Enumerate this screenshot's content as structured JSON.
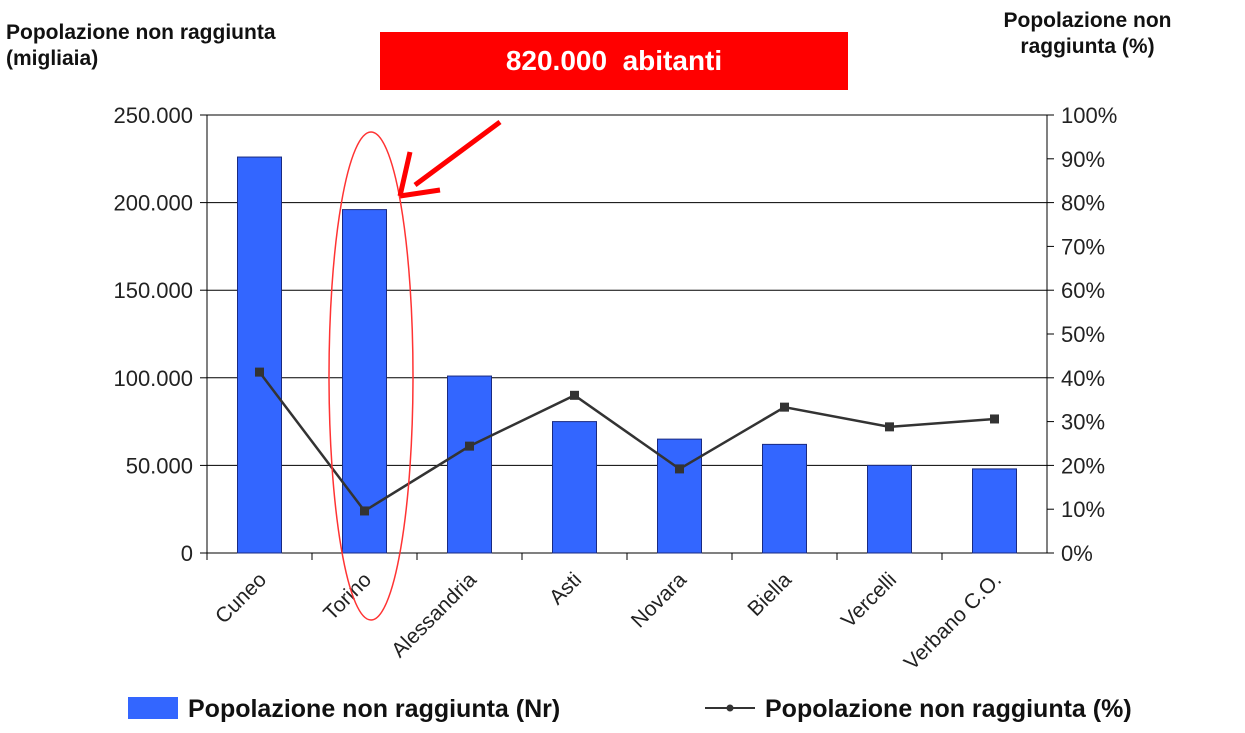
{
  "chart_data": {
    "type": "bar_line",
    "annotation": "820.000  abitanti",
    "y_label": "Popolazione non raggiunta (migliaia)",
    "y2_label": "Popolazione non raggiunta (%)",
    "categories": [
      "Cuneo",
      "Torino",
      "Alessandria",
      "Asti",
      "Novara",
      "Biella",
      "Vercelli",
      "Verbano C.O."
    ],
    "series": [
      {
        "name": "Popolazione non raggiunta (Nr)",
        "type": "bar",
        "color": "#3366ff",
        "values": [
          226000,
          196000,
          101000,
          75000,
          65000,
          62000,
          50000,
          48000
        ]
      },
      {
        "name": "Popolazione non raggiunta (%)",
        "type": "line",
        "axis": "y2",
        "color": "#333333",
        "values": [
          41.3,
          9.6,
          24.4,
          36,
          19.2,
          33.3,
          28.8,
          30.6
        ]
      }
    ],
    "ylim": [
      0,
      250000
    ],
    "yticks": [
      0,
      {
        "value": 50000,
        "label": "50.000"
      },
      {
        "value": 100000,
        "label": "100.000"
      },
      {
        "value": 150000,
        "label": "150.000"
      },
      {
        "value": 200000,
        "label": "200.000"
      },
      {
        "value": 250000,
        "label": "250.000"
      }
    ],
    "y2lim": [
      0,
      100
    ],
    "y2ticks": [
      {
        "value": 0,
        "label": "0%"
      },
      {
        "value": 10,
        "label": "10%"
      },
      {
        "value": 20,
        "label": "20%"
      },
      {
        "value": 30,
        "label": "30%"
      },
      {
        "value": 40,
        "label": "40%"
      },
      {
        "value": 50,
        "label": "50%"
      },
      {
        "value": 60,
        "label": "60%"
      },
      {
        "value": 70,
        "label": "70%"
      },
      {
        "value": 80,
        "label": "80%"
      },
      {
        "value": 90,
        "label": "90%"
      },
      {
        "value": 100,
        "label": "100%"
      }
    ],
    "grid": true
  }
}
